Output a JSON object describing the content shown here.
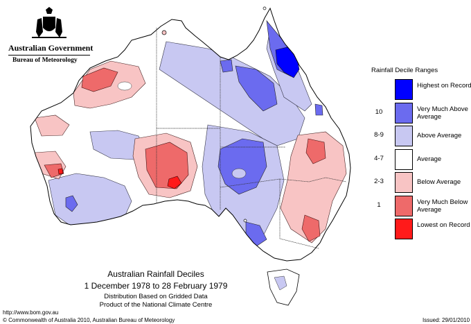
{
  "header": {
    "gov_name": "Australian Government",
    "agency": "Bureau of Meteorology"
  },
  "map": {
    "title": "Australian Rainfall Deciles",
    "period": "1 December 1978 to 28 February 1979",
    "note1": "Distribution Based on Gridded Data",
    "note2": "Product of the National Climate Centre"
  },
  "legend": {
    "title": "Rainfall Decile Ranges",
    "items": [
      {
        "range": "",
        "label": "Highest on Record",
        "color": "#0000ff"
      },
      {
        "range": "10",
        "label": "Very Much Above Average",
        "color": "#6b6bef"
      },
      {
        "range": "8-9",
        "label": "Above Average",
        "color": "#c8c8f2"
      },
      {
        "range": "4-7",
        "label": "Average",
        "color": "#ffffff"
      },
      {
        "range": "2-3",
        "label": "Below Average",
        "color": "#f8c4c4"
      },
      {
        "range": "1",
        "label": "Very Much Below Average",
        "color": "#ee6a6a"
      },
      {
        "range": "",
        "label": "Lowest on Record",
        "color": "#ff1a1a"
      }
    ]
  },
  "footer": {
    "url": "http://www.bom.gov.au",
    "copyright": "© Commonwealth of Australia 2010, Australian Bureau of Meteorology",
    "issued": "Issued: 29/01/2010"
  }
}
